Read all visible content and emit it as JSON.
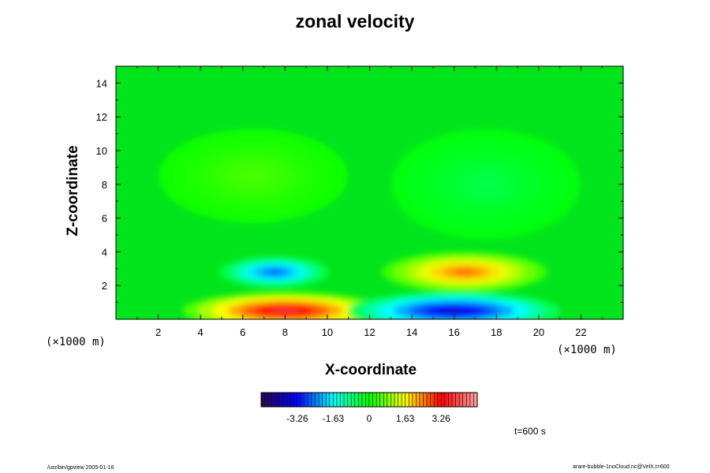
{
  "chart_data": {
    "type": "heatmap",
    "title": "zonal velocity",
    "xlabel": "X-coordinate",
    "ylabel": "Z-coordinate",
    "x_unit": "(×1000 m)",
    "y_unit": "(×1000 m)",
    "xlim": [
      0,
      24
    ],
    "ylim": [
      0,
      15
    ],
    "x_ticks": [
      2,
      4,
      6,
      8,
      10,
      12,
      14,
      16,
      18,
      20,
      22
    ],
    "y_ticks": [
      2,
      4,
      6,
      8,
      10,
      12,
      14
    ],
    "field_features": [
      {
        "x": 8.0,
        "z": 0.5,
        "value": 3.8
      },
      {
        "x": 16.0,
        "z": 0.5,
        "value": -3.8
      },
      {
        "x": 7.5,
        "z": 2.8,
        "value": -2.7
      },
      {
        "x": 16.5,
        "z": 2.8,
        "value": 2.6
      },
      {
        "x": 6.5,
        "z": 8.5,
        "value": 0.45
      },
      {
        "x": 17.5,
        "z": 8.0,
        "value": -0.45
      }
    ],
    "colorbar": {
      "range": [
        -4.9,
        4.9
      ],
      "tick_values": [
        -3.26,
        -1.63,
        0,
        1.63,
        3.26
      ],
      "tick_labels": [
        "-3.26",
        "-1.63",
        "0",
        "1.63",
        "3.26"
      ],
      "colors": [
        "#300050",
        "#0000ff",
        "#00ffff",
        "#00ff00",
        "#ffff00",
        "#ff0000",
        "#ffa0a0"
      ]
    }
  },
  "annotations": {
    "time": "t=600 s",
    "footer_left": "/usr/bin/gpview 2005-01-16",
    "footer_right": "arare-bubble-1noCloud.nc@VelX,t=600"
  }
}
